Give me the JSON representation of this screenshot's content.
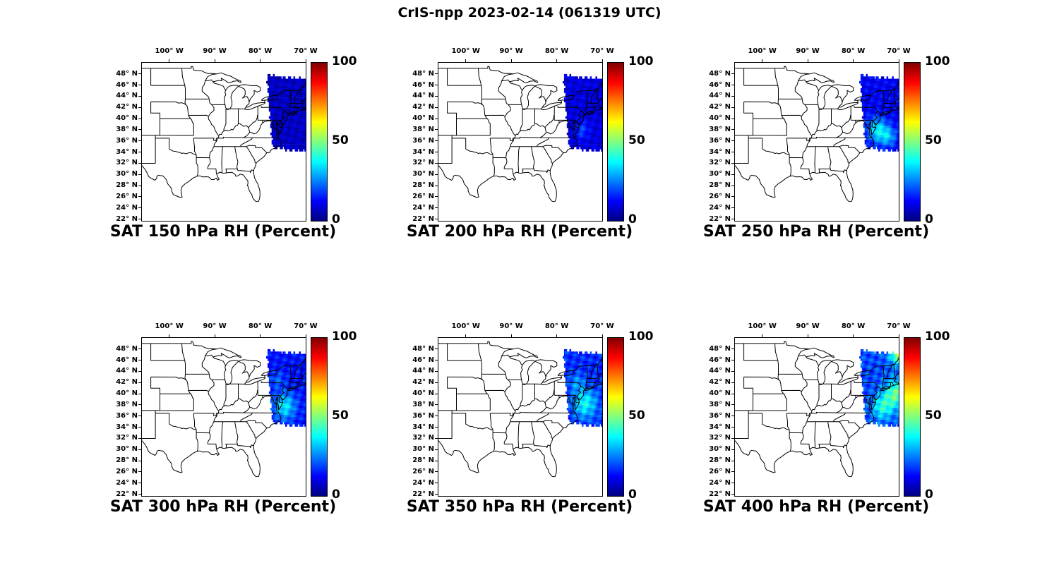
{
  "figure": {
    "title": "CrIS-npp 2023-02-14 (061319 UTC)",
    "satellite": "CrIS-npp",
    "date": "2023-02-14",
    "time_utc": "061319",
    "background_color": "#ffffff"
  },
  "axes": {
    "lon_tick_labels": [
      "100° W",
      "90° W",
      "80° W",
      "70° W"
    ],
    "lon_tick_values": [
      -100,
      -90,
      -80,
      -70
    ],
    "lat_tick_labels": [
      "48° N",
      "46° N",
      "44° N",
      "42° N",
      "40° N",
      "38° N",
      "36° N",
      "34° N",
      "32° N",
      "30° N",
      "28° N",
      "26° N",
      "24° N",
      "22° N"
    ],
    "lat_tick_values": [
      48,
      46,
      44,
      42,
      40,
      38,
      36,
      34,
      32,
      30,
      28,
      26,
      24,
      22
    ],
    "lon_range": [
      -106,
      -70
    ],
    "lat_range": [
      21.7,
      50
    ],
    "grid": false
  },
  "colorbar": {
    "tick_labels": [
      "100",
      "50",
      "0"
    ],
    "tick_values": [
      100,
      50,
      0
    ],
    "min": 0,
    "max": 100,
    "colormap": "jet",
    "orientation": "vertical"
  },
  "chart_data": [
    {
      "type": "heatmap",
      "level_hPa": 150,
      "title": "SAT 150 hPa RH (Percent)",
      "variable": "Relative Humidity",
      "units": "Percent",
      "colorbar_range": [
        0,
        100
      ],
      "map_extent": {
        "lon": [
          -106,
          -70
        ],
        "lat": [
          21.7,
          50
        ]
      },
      "swath": {
        "description": "CrIS-npp sounding swath over the northeastern US and adjacent Atlantic; nearly uniform very dry air (dark blue)",
        "lon_range": [
          -78.7,
          -70
        ],
        "lat_range": [
          34.2,
          47.9
        ],
        "rh_percent_min": 0,
        "rh_percent_max": 12,
        "rh_percent_typical": 5,
        "render": {
          "seed": 1.7,
          "base": 2,
          "amp": 9,
          "blobs": []
        }
      }
    },
    {
      "type": "heatmap",
      "level_hPa": 200,
      "title": "SAT 200 hPa RH (Percent)",
      "variable": "Relative Humidity",
      "units": "Percent",
      "colorbar_range": [
        0,
        100
      ],
      "map_extent": {
        "lon": [
          -106,
          -70
        ],
        "lat": [
          21.7,
          50
        ]
      },
      "swath": {
        "description": "Same swath; still very dry, slightly more texture than 150 hPa",
        "lon_range": [
          -78.7,
          -70
        ],
        "lat_range": [
          34.2,
          47.9
        ],
        "rh_percent_min": 0,
        "rh_percent_max": 18,
        "rh_percent_typical": 8,
        "render": {
          "seed": 3.4,
          "base": 4,
          "amp": 10,
          "blobs": [
            {
              "lon": -74.5,
              "lat": 38.0,
              "radius_deg": 1.6,
              "peak_rh_add": 10
            }
          ]
        }
      }
    },
    {
      "type": "heatmap",
      "level_hPa": 250,
      "title": "SAT 250 hPa RH (Percent)",
      "variable": "Relative Humidity",
      "units": "Percent",
      "colorbar_range": [
        0,
        100
      ],
      "map_extent": {
        "lon": [
          -106,
          -70
        ],
        "lat": [
          21.7,
          50
        ]
      },
      "swath": {
        "description": "M moister patches (cyan, ~30-40%) appear in the southern part of the swath near the mid-Atlantic coast",
        "lon_range": [
          -78.7,
          -70
        ],
        "lat_range": [
          34.2,
          47.9
        ],
        "rh_percent_min": 2,
        "rh_percent_max": 40,
        "rh_percent_typical": 12,
        "render": {
          "seed": 5.1,
          "base": 6,
          "amp": 11,
          "blobs": [
            {
              "lon": -74.8,
              "lat": 38.0,
              "radius_deg": 2.2,
              "peak_rh_add": 24
            },
            {
              "lon": -72.3,
              "lat": 36.8,
              "radius_deg": 1.8,
              "peak_rh_add": 18
            }
          ]
        }
      }
    },
    {
      "type": "heatmap",
      "level_hPa": 300,
      "title": "SAT 300 hPa RH (Percent)",
      "variable": "Relative Humidity",
      "units": "Percent",
      "colorbar_range": [
        0,
        100
      ],
      "map_extent": {
        "lon": [
          -106,
          -70
        ],
        "lat": [
          21.7,
          50
        ]
      },
      "swath": {
        "description": "Generally dry with brighter blue/cyan streaks between about 36-40N along the coast",
        "lon_range": [
          -78.7,
          -70
        ],
        "lat_range": [
          34.2,
          47.9
        ],
        "rh_percent_min": 3,
        "rh_percent_max": 42,
        "rh_percent_typical": 15,
        "render": {
          "seed": 6.8,
          "base": 8,
          "amp": 12,
          "blobs": [
            {
              "lon": -74.6,
              "lat": 37.8,
              "radius_deg": 2.4,
              "peak_rh_add": 22
            },
            {
              "lon": -76.2,
              "lat": 42.5,
              "radius_deg": 1.5,
              "peak_rh_add": 8
            }
          ]
        }
      }
    },
    {
      "type": "heatmap",
      "level_hPa": 350,
      "title": "SAT 350 hPa RH (Percent)",
      "variable": "Relative Humidity",
      "units": "Percent",
      "colorbar_range": [
        0,
        100
      ],
      "map_extent": {
        "lon": [
          -106,
          -70
        ],
        "lat": [
          21.7,
          50
        ]
      },
      "swath": {
        "description": "Slightly moister overall; cyan patches (~30-40%) in the southern half of the swath",
        "lon_range": [
          -78.7,
          -70
        ],
        "lat_range": [
          34.2,
          47.9
        ],
        "rh_percent_min": 4,
        "rh_percent_max": 45,
        "rh_percent_typical": 18,
        "render": {
          "seed": 8.5,
          "base": 10,
          "amp": 13,
          "blobs": [
            {
              "lon": -73.8,
              "lat": 38.3,
              "radius_deg": 2.6,
              "peak_rh_add": 22
            },
            {
              "lon": -75.6,
              "lat": 42.0,
              "radius_deg": 1.6,
              "peak_rh_add": 10
            }
          ]
        }
      }
    },
    {
      "type": "heatmap",
      "level_hPa": 400,
      "title": "SAT 400 hPa RH (Percent)",
      "variable": "Relative Humidity",
      "units": "Percent",
      "colorbar_range": [
        0,
        100
      ],
      "map_extent": {
        "lon": [
          -106,
          -70
        ],
        "lat": [
          21.7,
          50
        ]
      },
      "swath": {
        "description": "Moistest of the six levels: cyan/green patches (~40-60%) at the swath's northeast corner and along the right edge near 38-42N",
        "lon_range": [
          -78.7,
          -70
        ],
        "lat_range": [
          34.2,
          47.9
        ],
        "rh_percent_min": 5,
        "rh_percent_max": 60,
        "rh_percent_typical": 22,
        "render": {
          "seed": 10.2,
          "base": 12,
          "amp": 15,
          "blobs": [
            {
              "lon": -69.9,
              "lat": 47.4,
              "radius_deg": 2.0,
              "peak_rh_add": 38
            },
            {
              "lon": -70.6,
              "lat": 40.0,
              "radius_deg": 2.5,
              "peak_rh_add": 28
            },
            {
              "lon": -73.6,
              "lat": 37.6,
              "radius_deg": 2.2,
              "peak_rh_add": 20
            }
          ]
        }
      }
    }
  ]
}
